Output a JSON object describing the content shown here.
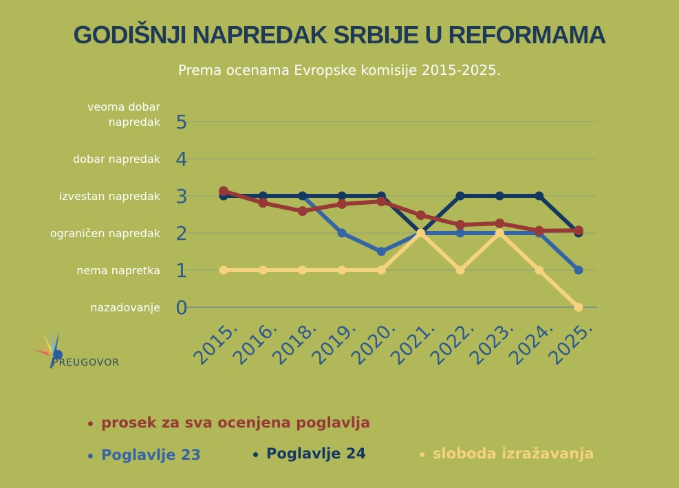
{
  "title": "GODIŠNJI NAPREDAK SRBIJE U REFORMAMA",
  "subtitle": "Prema ocenama Evropske komisije 2015-2025.",
  "logo_text": "PREUGOVOR",
  "chart_data": {
    "type": "line",
    "categories": [
      "2015.",
      "2016.",
      "2018.",
      "2019.",
      "2020.",
      "2021.",
      "2022.",
      "2023.",
      "2024.",
      "2025."
    ],
    "ylim": [
      0,
      5
    ],
    "yticks": [
      0,
      1,
      2,
      3,
      4,
      5
    ],
    "ytick_labels": [
      "nazadovanje",
      "nema napretka",
      "ograničen napredak",
      "izvestan napredak",
      "dobar napredak",
      "veoma dobar napredak"
    ],
    "grid": true,
    "legend_position": "bottom",
    "series": [
      {
        "name": "Poglavlje 23",
        "color": "#3566a3",
        "values": [
          3,
          3,
          3,
          2,
          1.5,
          2,
          2,
          2,
          2,
          1
        ]
      },
      {
        "name": "Poglavlje 24",
        "color": "#14385f",
        "values": [
          3,
          3,
          3,
          3,
          3,
          2,
          3,
          3,
          3,
          2
        ]
      },
      {
        "name": "sloboda izražavanja",
        "color": "#f5d27e",
        "values": [
          1,
          1,
          1,
          1,
          1,
          2,
          1,
          2,
          1,
          0
        ]
      },
      {
        "name": "prosek za sva ocenjena poglavlja",
        "color": "#973a35",
        "values": [
          3.13,
          2.81,
          2.59,
          2.78,
          2.85,
          2.48,
          2.22,
          2.26,
          2.06,
          2.07
        ]
      }
    ]
  }
}
